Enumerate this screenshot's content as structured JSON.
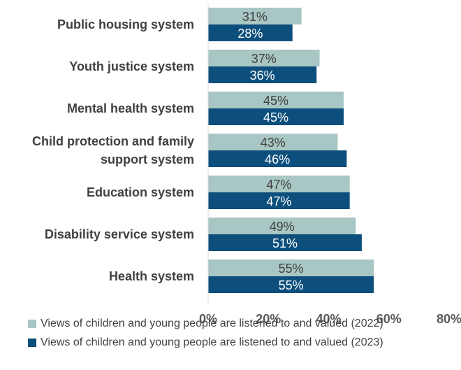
{
  "chart_data": {
    "type": "bar",
    "orientation": "horizontal",
    "categories": [
      [
        "Public housing system"
      ],
      [
        "Youth justice system"
      ],
      [
        "Mental health system"
      ],
      [
        "Child protection and family",
        "support system"
      ],
      [
        "Education system"
      ],
      [
        "Disability service system"
      ],
      [
        "Health system"
      ]
    ],
    "series": [
      {
        "name": "Views of children and young people are listened to and valued (2022)",
        "values": [
          31,
          37,
          45,
          43,
          47,
          49,
          55
        ],
        "labels": [
          "31%",
          "37%",
          "45%",
          "43%",
          "47%",
          "49%",
          "55%"
        ],
        "color": "#a8c6c3",
        "label_color": "#404040"
      },
      {
        "name": "Views of children and young people are listened to and valued (2023)",
        "values": [
          28,
          36,
          45,
          46,
          47,
          51,
          55
        ],
        "labels": [
          "28%",
          "36%",
          "45%",
          "46%",
          "47%",
          "51%",
          "55%"
        ],
        "color": "#0d4f7c",
        "label_color": "#ffffff"
      }
    ],
    "xlim": [
      0,
      80
    ],
    "xticks": [
      0,
      20,
      40,
      60,
      80
    ],
    "xtick_labels": [
      "0%",
      "20%",
      "40%",
      "60%",
      "80%"
    ],
    "grid": false,
    "legend_position": "bottom",
    "title": "",
    "xlabel": "",
    "ylabel": ""
  }
}
